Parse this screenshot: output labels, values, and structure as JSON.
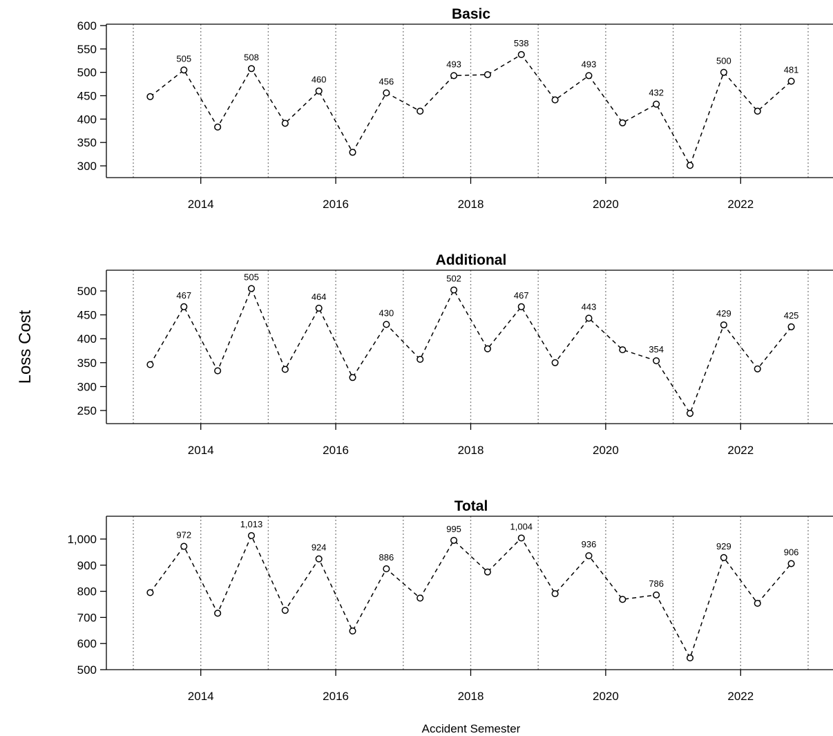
{
  "figure": {
    "ylabel": "Loss Cost",
    "xlabel": "Accident Semester"
  },
  "chart_data": [
    {
      "type": "line",
      "title": "Basic",
      "xlabel": "",
      "ylabel": "",
      "x": [
        2013.25,
        2013.75,
        2014.25,
        2014.75,
        2015.25,
        2015.75,
        2016.25,
        2016.75,
        2017.25,
        2017.75,
        2018.25,
        2018.75,
        2019.25,
        2019.75,
        2020.25,
        2020.75,
        2021.25,
        2021.75,
        2022.25,
        2022.75
      ],
      "values": [
        448,
        505,
        383,
        508,
        391,
        460,
        329,
        456,
        417,
        493,
        495,
        538,
        441,
        493,
        392,
        432,
        301,
        500,
        417,
        481
      ],
      "point_labels": [
        "",
        "505",
        "",
        "508",
        "",
        "460",
        "",
        "456",
        "",
        "493",
        "",
        "538",
        "",
        "493",
        "",
        "432",
        "",
        "500",
        "",
        "481"
      ],
      "yticks": [
        300,
        350,
        400,
        450,
        500,
        550,
        600
      ],
      "ytick_labels": [
        "300",
        "350",
        "400",
        "450",
        "500",
        "550",
        "600"
      ],
      "ylim": [
        300,
        600
      ],
      "xticks": [
        2014,
        2016,
        2018,
        2020,
        2022
      ],
      "xtick_labels": [
        "2014",
        "2016",
        "2018",
        "2020",
        "2022"
      ],
      "year_gridlines": [
        2013,
        2014,
        2015,
        2016,
        2017,
        2018,
        2019,
        2020,
        2021,
        2022,
        2023
      ],
      "line_style": "dashed",
      "marker": "open-circle",
      "grid": "vertical dotted at year boundaries"
    },
    {
      "type": "line",
      "title": "Additional",
      "xlabel": "",
      "ylabel": "",
      "x": [
        2013.25,
        2013.75,
        2014.25,
        2014.75,
        2015.25,
        2015.75,
        2016.25,
        2016.75,
        2017.25,
        2017.75,
        2018.25,
        2018.75,
        2019.25,
        2019.75,
        2020.25,
        2020.75,
        2021.25,
        2021.75,
        2022.25,
        2022.75
      ],
      "values": [
        346,
        467,
        333,
        505,
        336,
        464,
        319,
        430,
        357,
        502,
        379,
        467,
        350,
        443,
        377,
        354,
        244,
        429,
        337,
        425
      ],
      "point_labels": [
        "",
        "467",
        "",
        "505",
        "",
        "464",
        "",
        "430",
        "",
        "502",
        "",
        "467",
        "",
        "443",
        "",
        "354",
        "",
        "429",
        "",
        "425"
      ],
      "yticks": [
        250,
        300,
        350,
        400,
        450,
        500
      ],
      "ytick_labels": [
        "250",
        "300",
        "350",
        "400",
        "450",
        "500"
      ],
      "ylim": [
        250,
        500
      ],
      "xticks": [
        2014,
        2016,
        2018,
        2020,
        2022
      ],
      "xtick_labels": [
        "2014",
        "2016",
        "2018",
        "2020",
        "2022"
      ],
      "year_gridlines": [
        2013,
        2014,
        2015,
        2016,
        2017,
        2018,
        2019,
        2020,
        2021,
        2022,
        2023
      ],
      "line_style": "dashed",
      "marker": "open-circle",
      "grid": "vertical dotted at year boundaries"
    },
    {
      "type": "line",
      "title": "Total",
      "xlabel": "",
      "ylabel": "",
      "x": [
        2013.25,
        2013.75,
        2014.25,
        2014.75,
        2015.25,
        2015.75,
        2016.25,
        2016.75,
        2017.25,
        2017.75,
        2018.25,
        2018.75,
        2019.25,
        2019.75,
        2020.25,
        2020.75,
        2021.25,
        2021.75,
        2022.25,
        2022.75
      ],
      "values": [
        795,
        972,
        716,
        1013,
        727,
        924,
        648,
        886,
        774,
        995,
        874,
        1004,
        791,
        936,
        769,
        786,
        545,
        929,
        754,
        906
      ],
      "point_labels": [
        "",
        "972",
        "",
        "1,013",
        "",
        "924",
        "",
        "886",
        "",
        "995",
        "",
        "1,004",
        "",
        "936",
        "",
        "786",
        "",
        "929",
        "",
        "906"
      ],
      "yticks": [
        500,
        600,
        700,
        800,
        900,
        1000
      ],
      "ytick_labels": [
        "500",
        "600",
        "700",
        "800",
        "900",
        "1,000"
      ],
      "ylim": [
        500,
        1000
      ],
      "xticks": [
        2014,
        2016,
        2018,
        2020,
        2022
      ],
      "xtick_labels": [
        "2014",
        "2016",
        "2018",
        "2020",
        "2022"
      ],
      "year_gridlines": [
        2013,
        2014,
        2015,
        2016,
        2017,
        2018,
        2019,
        2020,
        2021,
        2022,
        2023
      ],
      "line_style": "dashed",
      "marker": "open-circle",
      "grid": "vertical dotted at year boundaries"
    }
  ]
}
